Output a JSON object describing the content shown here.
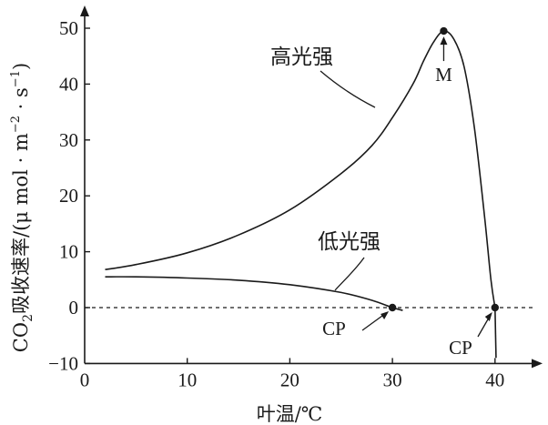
{
  "chart_data": {
    "type": "line",
    "title": "",
    "xlabel": "叶温/℃",
    "ylabel": "CO2吸收速率/(μmol·m⁻²·s⁻¹)",
    "xlim": [
      0,
      45
    ],
    "ylim": [
      -10,
      53
    ],
    "x_ticks": [
      "0",
      "10",
      "20",
      "30",
      "40"
    ],
    "y_ticks": [
      "−10",
      "0",
      "10",
      "20",
      "30",
      "40",
      "50"
    ],
    "reference_line": {
      "y": 0,
      "style": "dashed"
    },
    "series": [
      {
        "name": "高光强",
        "x": [
          2,
          5,
          10,
          15,
          20,
          25,
          28,
          30,
          32,
          33,
          34,
          35,
          36,
          37,
          38,
          39,
          39.6,
          40
        ],
        "y": [
          6.8,
          7.7,
          9.8,
          13,
          17.5,
          24,
          29,
          34,
          40,
          44,
          47.5,
          49.5,
          48,
          43,
          32,
          16,
          5,
          0
        ]
      },
      {
        "name": "低光强",
        "x": [
          2,
          5,
          10,
          15,
          20,
          25,
          28,
          30,
          31
        ],
        "y": [
          5.5,
          5.5,
          5.3,
          4.9,
          4.1,
          2.7,
          1.3,
          0,
          -0.5
        ]
      }
    ],
    "annotations": [
      {
        "label": "M",
        "x": 35,
        "y": 49.5
      },
      {
        "label": "CP",
        "x": 30,
        "y": 0
      },
      {
        "label": "CP",
        "x": 40,
        "y": 0
      }
    ]
  },
  "ylabel_parts": {
    "prefix": "CO",
    "sub": "2",
    "mid": "吸收速率/(μ mol · m",
    "sup1": "−2",
    "mid2": " · s",
    "sup2": "−1",
    "suffix": ")"
  }
}
